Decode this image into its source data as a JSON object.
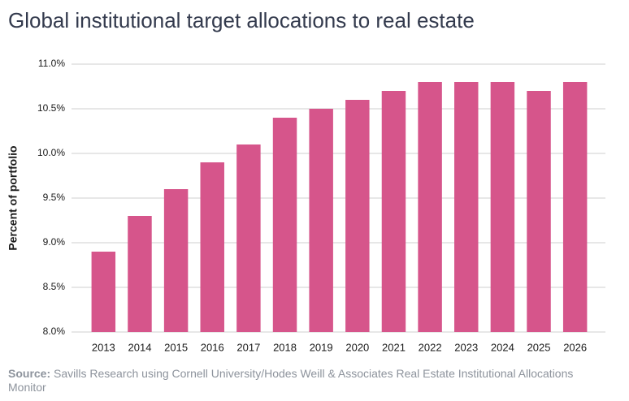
{
  "chart_data": {
    "type": "bar",
    "title": "Global institutional target allocations to real estate",
    "y_label": "Percent of portfolio",
    "categories": [
      "2013",
      "2014",
      "2015",
      "2016",
      "2017",
      "2018",
      "2019",
      "2020",
      "2021",
      "2022",
      "2023",
      "2024",
      "2025",
      "2026"
    ],
    "values": [
      8.9,
      9.3,
      9.6,
      9.9,
      10.1,
      10.4,
      10.5,
      10.6,
      10.7,
      10.8,
      10.8,
      10.8,
      10.7,
      10.8
    ],
    "color": "#d6558b",
    "ylim": [
      8,
      11
    ],
    "yticks": [
      {
        "value": 8,
        "label": "8.0%"
      },
      {
        "value": 8.5,
        "label": "8.5%"
      },
      {
        "value": 9,
        "label": "9.0%"
      },
      {
        "value": 9.5,
        "label": "9.5%"
      },
      {
        "value": 10,
        "label": "10.0%"
      },
      {
        "value": 10.5,
        "label": "10.5%"
      },
      {
        "value": 11,
        "label": "11.0%"
      }
    ],
    "grid": true,
    "source_label": "Source:",
    "source": "Savills Research using Cornell University/Hodes Weill & Associates Real Estate Institutional Allocations Monitor"
  }
}
